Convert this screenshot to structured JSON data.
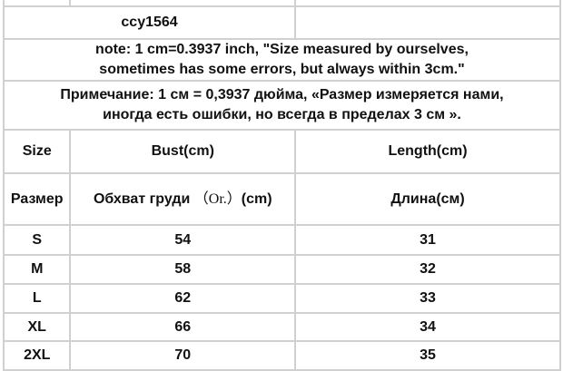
{
  "title": "ccy1564",
  "note_en_line1": "note: 1 cm=0.3937 inch, \"Size measured by ourselves,",
  "note_en_line2": "sometimes has some errors, but always within 3cm.\"",
  "note_ru_line1": "Примечание: 1 см = 0,3937 дюйма, «Размер измеряется нами,",
  "note_ru_line2": "иногда есть ошибки, но всегда в пределах 3 см ».",
  "headers_en": [
    "Size",
    "Bust(cm)",
    "Length(cm)"
  ],
  "headers_ru": {
    "size": "Размер",
    "bust_a": "Обхват груди",
    "bust_b": "（Or.）",
    "bust_c": "(cm)",
    "length": "Длина(см)"
  },
  "rows": [
    {
      "size": "S",
      "bust": "54",
      "length": "31"
    },
    {
      "size": "M",
      "bust": "58",
      "length": "32"
    },
    {
      "size": "L",
      "bust": "62",
      "length": "33"
    },
    {
      "size": "XL",
      "bust": "66",
      "length": "34"
    },
    {
      "size": "2XL",
      "bust": "70",
      "length": "35"
    }
  ]
}
